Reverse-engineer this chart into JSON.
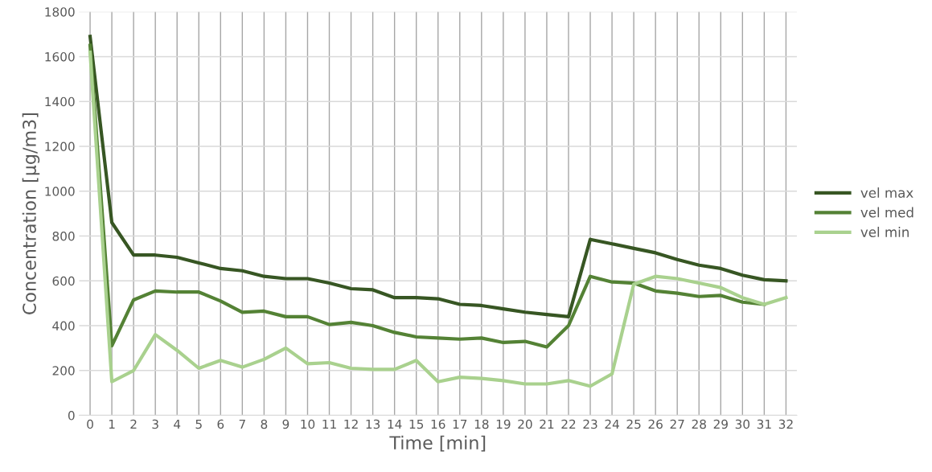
{
  "chart_data": {
    "type": "line",
    "xlabel": "Time [min]",
    "ylabel": "Concentration [µg/m3]",
    "categories": [
      "0",
      "1",
      "2",
      "3",
      "4",
      "5",
      "6",
      "7",
      "8",
      "9",
      "10",
      "11",
      "12",
      "13",
      "14",
      "15",
      "16",
      "17",
      "18",
      "19",
      "20",
      "21",
      "22",
      "23",
      "24",
      "25",
      "26",
      "27",
      "28",
      "29",
      "30",
      "31",
      "32"
    ],
    "series": [
      {
        "name": "vel max",
        "color": "#375623",
        "values": [
          1690,
          860,
          715,
          715,
          705,
          680,
          655,
          645,
          620,
          610,
          610,
          590,
          565,
          560,
          525,
          525,
          520,
          495,
          490,
          475,
          460,
          450,
          440,
          785,
          765,
          745,
          725,
          695,
          670,
          655,
          625,
          605,
          600
        ]
      },
      {
        "name": "vel med",
        "color": "#548235",
        "values": [
          1650,
          310,
          515,
          555,
          550,
          550,
          510,
          460,
          465,
          440,
          440,
          405,
          415,
          400,
          370,
          350,
          345,
          340,
          345,
          325,
          330,
          305,
          400,
          620,
          595,
          590,
          555,
          545,
          530,
          535,
          505,
          495,
          null
        ]
      },
      {
        "name": "vel min",
        "color": "#a9d18e",
        "values": [
          1620,
          150,
          200,
          360,
          290,
          210,
          245,
          215,
          250,
          300,
          230,
          235,
          210,
          205,
          205,
          245,
          150,
          170,
          165,
          155,
          140,
          140,
          155,
          130,
          185,
          585,
          620,
          610,
          590,
          570,
          525,
          495,
          525
        ]
      }
    ],
    "ylim": [
      0,
      1800
    ],
    "yticks": [
      0,
      200,
      400,
      600,
      800,
      1000,
      1200,
      1400,
      1600,
      1800
    ],
    "grid": true,
    "legend": "right",
    "marker": "none",
    "line_style": "solid"
  }
}
